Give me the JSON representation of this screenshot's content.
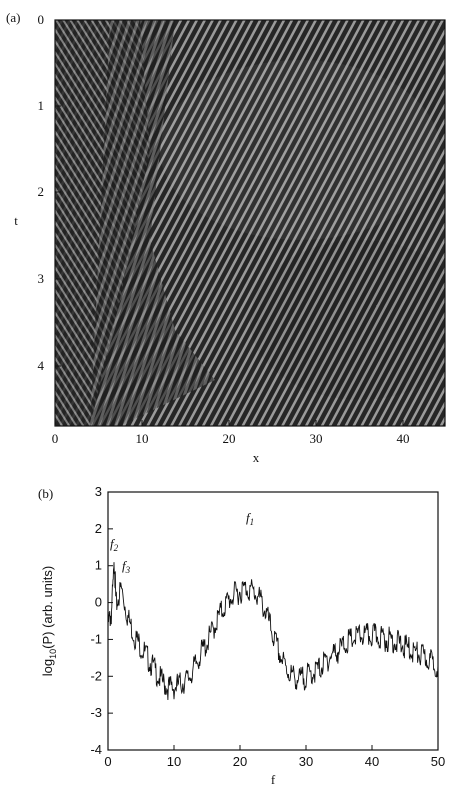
{
  "panel_a": {
    "label": "(a)",
    "xlabel": "x",
    "ylabel": "t",
    "x_ticks": [
      "0",
      "10",
      "20",
      "30",
      "40"
    ],
    "y_ticks": [
      "0",
      "1",
      "2",
      "3",
      "4"
    ],
    "x_range": [
      0,
      45
    ],
    "t_range": [
      0,
      4.7
    ],
    "colors": {
      "dark": "#202020",
      "light": "#b8b8b8"
    }
  },
  "panel_b": {
    "label": "(b)",
    "xlabel": "f",
    "ylabel": "log",
    "ylabel_sub": "10",
    "ylabel_rest": "(P) (arb. units)",
    "annotations": [
      {
        "main": "f",
        "sub": "1"
      },
      {
        "main": "f",
        "sub": "2"
      },
      {
        "main": "f",
        "sub": "3"
      }
    ]
  },
  "chart_data": {
    "type": "line",
    "title": "",
    "xlabel": "f",
    "ylabel": "log10(P) (arb. units)",
    "xlim": [
      0,
      50
    ],
    "ylim": [
      -4,
      3
    ],
    "x_ticks": [
      "0",
      "10",
      "20",
      "30",
      "40",
      "50"
    ],
    "y_ticks": [
      "3",
      "2",
      "1",
      "0",
      "-1",
      "-2",
      "-3",
      "-4"
    ],
    "series": [
      {
        "name": "",
        "x": [
          0,
          0.5,
          1,
          1.2,
          2,
          3,
          4,
          5,
          6,
          7,
          8,
          9,
          10,
          11,
          12,
          13,
          14,
          15,
          16,
          17,
          18,
          19,
          20,
          21,
          22,
          23,
          24,
          25,
          26,
          27,
          28,
          29,
          30,
          31,
          32,
          33,
          34,
          35,
          36,
          37,
          38,
          39,
          40,
          41,
          42,
          43,
          44,
          45,
          46,
          47,
          48,
          49,
          50
        ],
        "y": [
          -0.6,
          -0.3,
          1.1,
          -0.1,
          0.4,
          -0.4,
          -0.9,
          -1.2,
          -1.5,
          -1.8,
          -2.1,
          -2.3,
          -2.3,
          -2.2,
          -2.1,
          -1.8,
          -1.4,
          -1.1,
          -0.7,
          -0.3,
          0.0,
          0.2,
          0.3,
          0.4,
          0.3,
          0.1,
          -0.3,
          -0.9,
          -1.4,
          -1.8,
          -2.0,
          -2.1,
          -2.0,
          -1.9,
          -1.8,
          -1.6,
          -1.4,
          -1.3,
          -1.1,
          -1.0,
          -0.9,
          -0.9,
          -0.9,
          -0.9,
          -1.0,
          -1.0,
          -1.1,
          -1.2,
          -1.3,
          -1.4,
          -1.5,
          -1.6,
          -1.7
        ]
      }
    ],
    "annotations": [
      {
        "text": "f1",
        "x": 21,
        "y": 2.3
      },
      {
        "text": "f2",
        "x": 0.5,
        "y": 1.6
      },
      {
        "text": "f3",
        "x": 2.0,
        "y": 1.0
      }
    ]
  }
}
